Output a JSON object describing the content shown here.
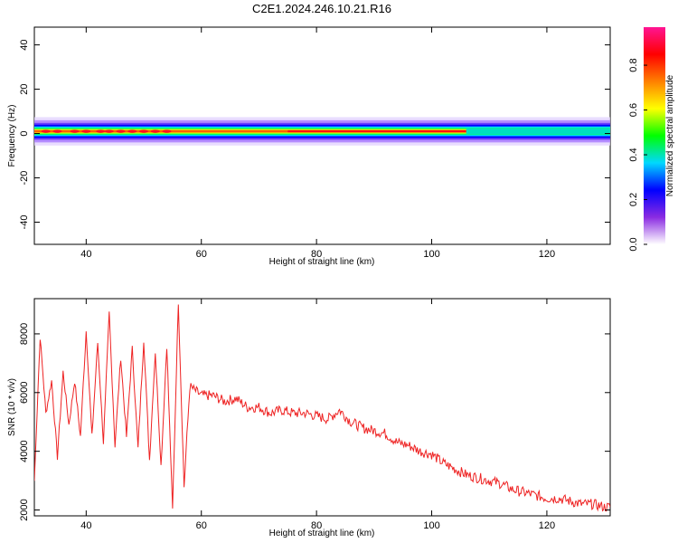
{
  "figure": {
    "title": "C2E1.2024.246.10.21.R16"
  },
  "chart_data": [
    {
      "type": "heatmap",
      "title": "C2E1.2024.246.10.21.R16",
      "xlabel": "Height of straight line (km)",
      "ylabel": "Frequency (Hz)",
      "xlim": [
        31,
        131
      ],
      "ylim": [
        -50,
        48
      ],
      "xticks": [
        40,
        60,
        80,
        100,
        120
      ],
      "yticks": [
        -40,
        -20,
        0,
        20,
        40
      ],
      "colorbar": {
        "label": "Normalized spectral amplitude",
        "range": [
          0,
          0.97
        ],
        "ticks": [
          0.0,
          0.2,
          0.4,
          0.6,
          0.8
        ],
        "tick_labels": [
          "0.0",
          "0.2",
          "0.4",
          "0.6",
          "0.8"
        ],
        "colormap": [
          "#ffffff",
          "#8a2be2",
          "#0000ff",
          "#00d8ff",
          "#00ff00",
          "#ffff00",
          "#ff8000",
          "#ff0000",
          "#ff1493"
        ]
      },
      "band": {
        "center_freq": 1,
        "half_width": 4,
        "core_amplitude": 0.9,
        "segments": [
          {
            "x": [
              31,
              57
            ],
            "description_values": [
              0.85,
              0.25
            ]
          },
          {
            "x": [
              57,
              75
            ],
            "description_values": [
              0.55,
              0.45
            ]
          },
          {
            "x": [
              75,
              105
            ],
            "description_values": [
              0.9,
              0.7
            ]
          },
          {
            "x": [
              105,
              131
            ],
            "description_values": [
              0.5,
              0.35
            ]
          }
        ]
      }
    },
    {
      "type": "line",
      "xlabel": "Height of straight line (km)",
      "ylabel": "SNR (10 * v/v)",
      "xlim": [
        31,
        131
      ],
      "ylim": [
        1800,
        9200
      ],
      "xticks": [
        40,
        60,
        80,
        100,
        120
      ],
      "yticks": [
        2000,
        4000,
        6000,
        8000
      ],
      "series": [
        {
          "color": "#ee2222",
          "x": [
            31,
            32,
            33,
            34,
            35,
            36,
            37,
            38,
            39,
            40,
            41,
            42,
            43,
            44,
            45,
            46,
            47,
            48,
            49,
            50,
            51,
            52,
            53,
            54,
            55,
            56,
            57,
            58,
            60,
            62,
            64,
            66,
            68,
            70,
            72,
            74,
            76,
            78,
            80,
            82,
            84,
            86,
            88,
            90,
            92,
            94,
            96,
            98,
            100,
            102,
            104,
            106,
            108,
            110,
            112,
            114,
            116,
            118,
            120,
            122,
            124,
            126,
            128,
            130,
            131
          ],
          "y": [
            3000,
            7900,
            5300,
            6400,
            3800,
            6700,
            4900,
            6400,
            4500,
            8100,
            4500,
            7700,
            4300,
            8700,
            4200,
            7200,
            4500,
            7500,
            4100,
            7800,
            3700,
            7400,
            3500,
            7600,
            2000,
            9100,
            2800,
            6200,
            5900,
            5900,
            5700,
            5800,
            5500,
            5500,
            5300,
            5400,
            5300,
            5300,
            5200,
            5100,
            5400,
            5000,
            4800,
            4700,
            4600,
            4300,
            4200,
            4000,
            3900,
            3600,
            3400,
            3200,
            3100,
            3000,
            2900,
            2700,
            2600,
            2500,
            2400,
            2400,
            2300,
            2200,
            2200,
            2100,
            2100
          ]
        }
      ]
    }
  ]
}
